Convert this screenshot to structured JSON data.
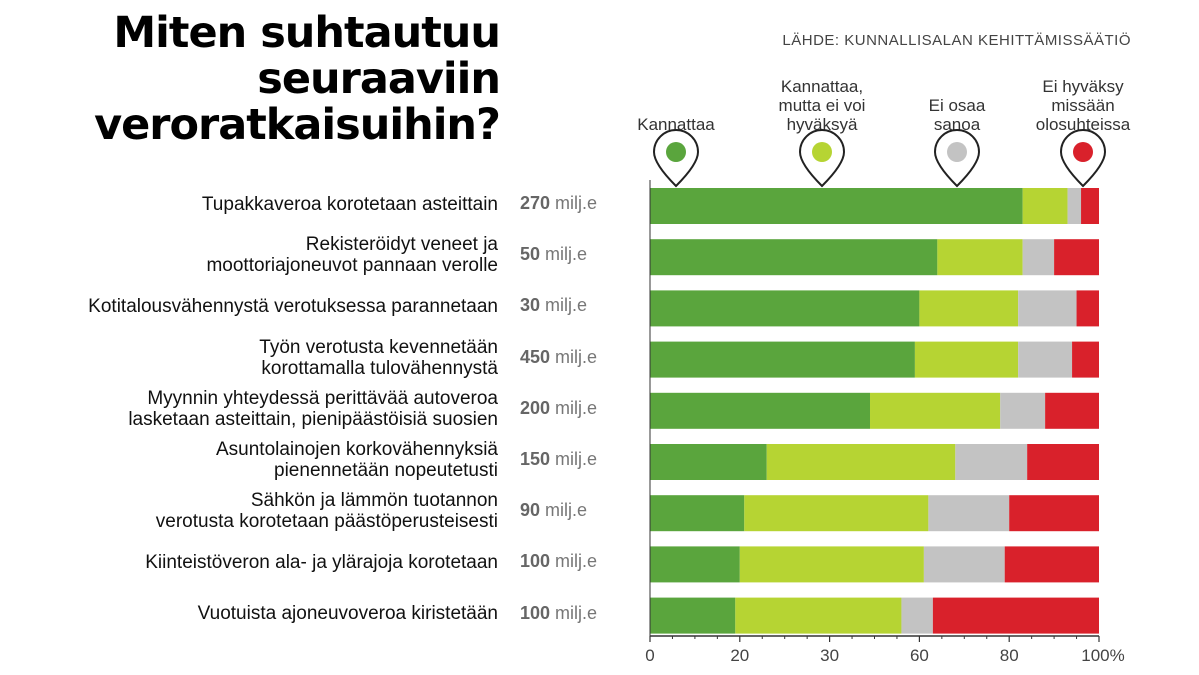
{
  "title_lines": [
    "Miten suhtautuu",
    "seuraaviin",
    "veroratkaisuihin?"
  ],
  "source": "LÄHDE: KUNNALLISALAN KEHITTÄMISSÄÄTIÖ",
  "colors": {
    "kannattaa": "#5aa53d",
    "kannattaa_mutta": "#b6d433",
    "ei_osaa": "#c3c3c3",
    "ei_hyvaksy": "#d9212b"
  },
  "chart_data": {
    "type": "bar",
    "orientation": "horizontal",
    "stacked": true,
    "xlim": [
      0,
      100
    ],
    "x_ticks": [
      "0",
      "20",
      "30",
      "60",
      "80",
      "100%"
    ],
    "legend": [
      {
        "lines": [
          "Kannattaa"
        ],
        "color": "#5aa53d"
      },
      {
        "lines": [
          "Kannattaa,",
          "mutta ei voi",
          "hyväksyä"
        ],
        "color": "#b6d433"
      },
      {
        "lines": [
          "Ei osaa",
          "sanoa"
        ],
        "color": "#c3c3c3"
      },
      {
        "lines": [
          "Ei hyväksy",
          "missään",
          "olosuhteissa"
        ],
        "color": "#d9212b"
      }
    ],
    "categories": [
      {
        "lines": [
          "Tupakkaveroa korotetaan asteittain"
        ],
        "amount_num": "270",
        "amount_unit": " milj.e"
      },
      {
        "lines": [
          "Rekisteröidyt veneet ja",
          "moottoriajoneuvot pannaan verolle"
        ],
        "amount_num": "50",
        "amount_unit": " milj.e"
      },
      {
        "lines": [
          "Kotitalousvähennystä verotuksessa parannetaan"
        ],
        "amount_num": "30",
        "amount_unit": " milj.e"
      },
      {
        "lines": [
          "Työn verotusta kevennetään",
          "korottamalla tulovähennystä"
        ],
        "amount_num": "450",
        "amount_unit": " milj.e"
      },
      {
        "lines": [
          "Myynnin yhteydessä perittävää autoveroa",
          "lasketaan asteittain, pienipäästöisiä suosien"
        ],
        "amount_num": "200",
        "amount_unit": " milj.e"
      },
      {
        "lines": [
          "Asuntolainojen korkovähennyksiä",
          "pienennetään nopeutetusti"
        ],
        "amount_num": "150",
        "amount_unit": " milj.e"
      },
      {
        "lines": [
          "Sähkön ja lämmön tuotannon",
          "verotusta korotetaan päästöperusteisesti"
        ],
        "amount_num": "90",
        "amount_unit": " milj.e"
      },
      {
        "lines": [
          "Kiinteistöveron ala- ja ylärajoja korotetaan"
        ],
        "amount_num": "100",
        "amount_unit": " milj.e"
      },
      {
        "lines": [
          "Vuotuista ajoneuvoveroa kiristetään"
        ],
        "amount_num": "100",
        "amount_unit": " milj.e"
      }
    ],
    "series": [
      {
        "name": "Kannattaa",
        "values": [
          83,
          64,
          60,
          59,
          49,
          26,
          21,
          20,
          19
        ]
      },
      {
        "name": "Kannattaa, mutta ei voi hyväksyä",
        "values": [
          10,
          19,
          22,
          23,
          29,
          42,
          41,
          41,
          37
        ]
      },
      {
        "name": "Ei osaa sanoa",
        "values": [
          3,
          7,
          13,
          12,
          10,
          16,
          18,
          18,
          7
        ]
      },
      {
        "name": "Ei hyväksy missään olosuhteissa",
        "values": [
          4,
          10,
          5,
          6,
          12,
          16,
          20,
          21,
          37
        ]
      }
    ]
  }
}
